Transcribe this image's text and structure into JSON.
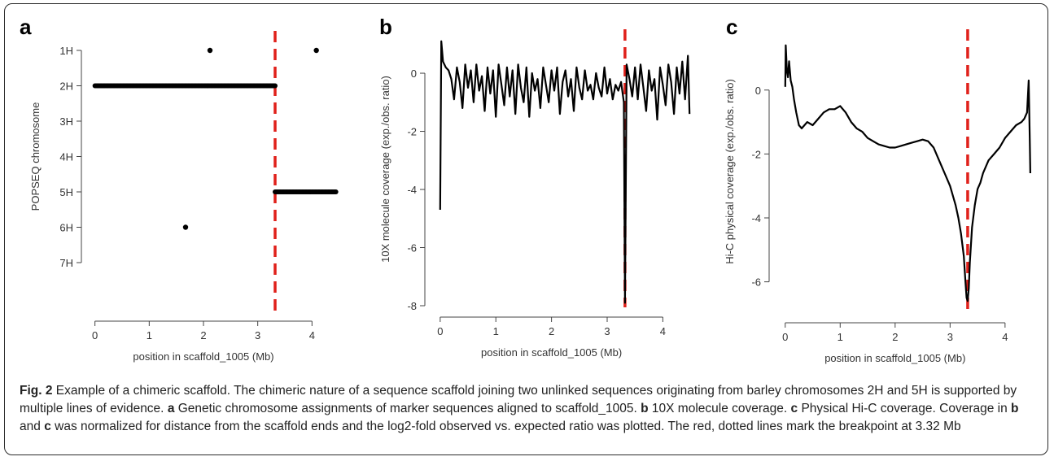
{
  "caption": {
    "fig_label": "Fig. 2",
    "title": "Example of a chimeric scaffold.",
    "sentence1": "The chimeric nature of a sequence scaffold joining two unlinked sequences originating from barley chromosomes 2H and 5H is supported by multiple lines of evidence.",
    "a_label": "a",
    "a_text": "Genetic chromosome assignments of marker sequences aligned to scaffold_1005.",
    "b_label": "b",
    "b_text": "10X molecule coverage.",
    "c_label": "c",
    "c_text": "Physical Hi-C coverage. Coverage in",
    "c_b_ref": "b",
    "c_and": "and",
    "c_c_ref": "c",
    "c_text2": "was normalized for distance from the scaffold ends and the log2-fold observed vs. expected ratio was plotted. The red, dotted lines mark the breakpoint at 3.32 Mb"
  },
  "chart_data": [
    {
      "panel": "a",
      "type": "scatter",
      "xlabel": "position in scaffold_1005 (Mb)",
      "ylabel": "POPSEQ chromosome",
      "xlim": [
        -0.1,
        4.55
      ],
      "xticks": [
        0,
        1,
        2,
        3,
        4
      ],
      "y_categories": [
        "1H",
        "2H",
        "3H",
        "4H",
        "5H",
        "6H",
        "7H"
      ],
      "breakpoint": 3.32,
      "breakpoint_color": "#e0211b",
      "series": [
        {
          "chromosome": "2H",
          "x_range": [
            0.0,
            3.32
          ],
          "spacing": 0.02
        },
        {
          "chromosome": "5H",
          "x_range": [
            3.32,
            4.45
          ],
          "spacing": 0.02
        }
      ],
      "points": [
        {
          "x": 2.12,
          "y": "1H"
        },
        {
          "x": 4.08,
          "y": "1H"
        },
        {
          "x": 1.67,
          "y": "6H"
        }
      ]
    },
    {
      "panel": "b",
      "type": "line",
      "xlabel": "position in scaffold_1005 (Mb)",
      "ylabel": "10X molecule coverage (exp./obs. ratio)",
      "xlim": [
        -0.1,
        4.55
      ],
      "ylim": [
        -8,
        1.4
      ],
      "xticks": [
        0,
        1,
        2,
        3,
        4
      ],
      "yticks": [
        0,
        -2,
        -4,
        -6,
        -8
      ],
      "breakpoint": 3.32,
      "breakpoint_color": "#e0211b",
      "x": [
        0.0,
        0.02,
        0.05,
        0.1,
        0.15,
        0.2,
        0.25,
        0.3,
        0.35,
        0.4,
        0.45,
        0.5,
        0.55,
        0.6,
        0.65,
        0.7,
        0.75,
        0.8,
        0.85,
        0.9,
        0.95,
        1.0,
        1.05,
        1.1,
        1.15,
        1.2,
        1.25,
        1.3,
        1.35,
        1.4,
        1.45,
        1.5,
        1.55,
        1.6,
        1.65,
        1.7,
        1.75,
        1.8,
        1.85,
        1.9,
        1.95,
        2.0,
        2.05,
        2.1,
        2.15,
        2.2,
        2.25,
        2.3,
        2.35,
        2.4,
        2.45,
        2.5,
        2.55,
        2.6,
        2.65,
        2.7,
        2.75,
        2.8,
        2.85,
        2.9,
        2.95,
        3.0,
        3.05,
        3.1,
        3.15,
        3.2,
        3.25,
        3.3,
        3.32,
        3.35,
        3.4,
        3.45,
        3.5,
        3.55,
        3.6,
        3.65,
        3.7,
        3.75,
        3.8,
        3.85,
        3.9,
        3.95,
        4.0,
        4.05,
        4.1,
        4.15,
        4.2,
        4.25,
        4.3,
        4.35,
        4.4,
        4.45,
        4.48
      ],
      "y": [
        -4.7,
        1.1,
        0.4,
        0.2,
        0.1,
        -0.2,
        -0.9,
        0.2,
        -0.3,
        -1.2,
        0.3,
        -0.5,
        0.1,
        -1.0,
        0.3,
        -0.6,
        -0.1,
        -1.3,
        0.2,
        -0.7,
        0.1,
        -1.5,
        0.3,
        -0.4,
        -1.1,
        0.2,
        -0.8,
        0.1,
        -1.4,
        0.3,
        -0.5,
        -1.0,
        0.2,
        -1.5,
        0.0,
        -0.6,
        -0.2,
        -1.2,
        0.2,
        -0.4,
        -1.0,
        0.1,
        -0.6,
        0.2,
        -1.4,
        -0.3,
        0.1,
        -0.8,
        -0.2,
        -1.3,
        0.2,
        -0.5,
        -0.9,
        0.1,
        -0.6,
        -0.4,
        -0.9,
        0.0,
        -0.5,
        -0.8,
        0.2,
        -0.7,
        -0.2,
        -0.9,
        -0.4,
        -0.6,
        -0.3,
        -1.0,
        -7.9,
        0.3,
        -0.2,
        -0.8,
        0.2,
        -0.9,
        0.3,
        -0.5,
        -1.3,
        0.1,
        -0.6,
        -0.2,
        -1.6,
        0.2,
        -0.4,
        -1.1,
        0.3,
        -0.3,
        -1.4,
        0.2,
        -0.7,
        0.4,
        -0.9,
        0.6,
        -1.4
      ]
    },
    {
      "panel": "c",
      "type": "line",
      "xlabel": "position in scaffold_1005 (Mb)",
      "ylabel": "Hi-C physical coverage (exp./obs. ratio)",
      "xlim": [
        -0.1,
        4.55
      ],
      "ylim": [
        -6.9,
        1.8
      ],
      "xticks": [
        0,
        1,
        2,
        3,
        4
      ],
      "yticks": [
        0,
        -2,
        -4,
        -6
      ],
      "breakpoint": 3.32,
      "breakpoint_color": "#e0211b",
      "x": [
        0.0,
        0.01,
        0.03,
        0.05,
        0.07,
        0.1,
        0.13,
        0.16,
        0.2,
        0.25,
        0.3,
        0.4,
        0.5,
        0.6,
        0.7,
        0.8,
        0.9,
        1.0,
        1.1,
        1.2,
        1.3,
        1.4,
        1.5,
        1.6,
        1.7,
        1.8,
        1.9,
        2.0,
        2.1,
        2.2,
        2.3,
        2.4,
        2.5,
        2.6,
        2.7,
        2.8,
        2.9,
        3.0,
        3.05,
        3.1,
        3.15,
        3.2,
        3.25,
        3.28,
        3.3,
        3.32,
        3.34,
        3.36,
        3.4,
        3.45,
        3.5,
        3.55,
        3.6,
        3.7,
        3.8,
        3.9,
        4.0,
        4.1,
        4.2,
        4.3,
        4.35,
        4.4,
        4.43,
        4.45,
        4.46
      ],
      "y": [
        0.1,
        1.4,
        0.6,
        0.4,
        0.9,
        0.3,
        0.1,
        -0.3,
        -0.7,
        -1.1,
        -1.2,
        -1.0,
        -1.1,
        -0.9,
        -0.7,
        -0.6,
        -0.6,
        -0.5,
        -0.7,
        -1.0,
        -1.2,
        -1.3,
        -1.5,
        -1.6,
        -1.7,
        -1.75,
        -1.8,
        -1.8,
        -1.75,
        -1.7,
        -1.65,
        -1.6,
        -1.55,
        -1.6,
        -1.8,
        -2.2,
        -2.6,
        -3.0,
        -3.3,
        -3.6,
        -4.0,
        -4.5,
        -5.2,
        -6.0,
        -6.5,
        -6.6,
        -6.2,
        -5.4,
        -4.3,
        -3.6,
        -3.1,
        -2.9,
        -2.6,
        -2.2,
        -2.0,
        -1.8,
        -1.5,
        -1.3,
        -1.1,
        -1.0,
        -0.9,
        -0.7,
        0.3,
        -1.5,
        -2.6
      ]
    }
  ]
}
